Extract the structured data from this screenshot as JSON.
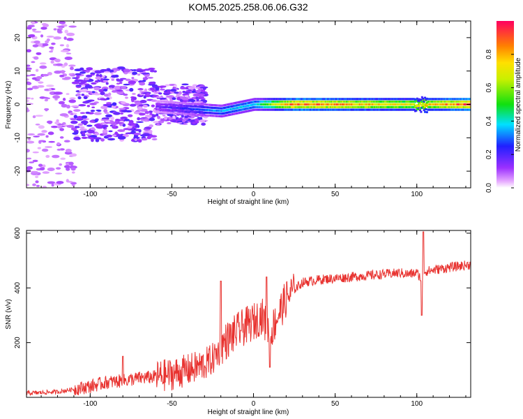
{
  "title": "KOM5.2025.258.06.06.G32",
  "chart_data": [
    {
      "type": "heatmap",
      "name": "spectrogram",
      "xlabel": "Height of straight line (km)",
      "ylabel": "Frequency (Hz)",
      "xlim": [
        -139,
        133
      ],
      "ylim": [
        -25,
        25
      ],
      "xticks": [
        -100,
        -50,
        0,
        50,
        100
      ],
      "yticks": [
        -20,
        -10,
        0,
        10,
        20
      ],
      "xtick_labels": [
        "-100",
        "-50",
        "0",
        "50",
        "100"
      ],
      "ytick_labels": [
        "-20",
        "-10",
        "0",
        "10",
        "20"
      ],
      "colorbar": {
        "label": "Normalized spectral amplitude",
        "range": [
          0,
          1
        ],
        "ticks": [
          0.0,
          0.2,
          0.4,
          0.6,
          0.8
        ],
        "tick_labels": [
          "0.0",
          "0.2",
          "0.4",
          "0.6",
          "0.8"
        ],
        "colormap": "rainbow (white-magenta-blue-cyan-green-yellow-orange-red)"
      },
      "description_points": {
        "ridge_frequency_hz": [
          {
            "height_km": -50,
            "freq_hz": -1,
            "amp": 0.2
          },
          {
            "height_km": -20,
            "freq_hz": -2,
            "amp": 0.35
          },
          {
            "height_km": 0,
            "freq_hz": 0,
            "amp": 0.4
          },
          {
            "height_km": 25,
            "freq_hz": 0,
            "amp": 0.9
          },
          {
            "height_km": 50,
            "freq_hz": 0,
            "amp": 0.85
          },
          {
            "height_km": 100,
            "freq_hz": 0,
            "amp": 0.7
          },
          {
            "height_km": 133,
            "freq_hz": 0,
            "amp": 0.95
          }
        ]
      }
    },
    {
      "type": "line",
      "name": "snr",
      "xlabel": "Height of straight line (km)",
      "ylabel": "SNR (v/v)",
      "xlim": [
        -139,
        133
      ],
      "ylim": [
        0,
        610
      ],
      "xticks": [
        -100,
        -50,
        0,
        50,
        100
      ],
      "yticks": [
        200,
        400,
        600
      ],
      "xtick_labels": [
        "-100",
        "-50",
        "0",
        "50",
        "100"
      ],
      "ytick_labels": [
        "200",
        "400",
        "600"
      ],
      "color": "#e8322f",
      "series": [
        {
          "name": "SNR",
          "x": [
            -139,
            -120,
            -100,
            -90,
            -80,
            -70,
            -60,
            -50,
            -40,
            -30,
            -25,
            -20,
            -18,
            -15,
            -10,
            -5,
            0,
            3,
            5,
            8,
            10,
            15,
            20,
            25,
            30,
            40,
            50,
            60,
            70,
            80,
            90,
            95,
            100,
            102,
            103,
            104,
            105,
            110,
            120,
            133
          ],
          "y": [
            15,
            20,
            40,
            55,
            60,
            70,
            75,
            85,
            100,
            120,
            140,
            180,
            200,
            215,
            240,
            260,
            275,
            290,
            300,
            260,
            230,
            300,
            360,
            395,
            420,
            430,
            435,
            440,
            445,
            450,
            455,
            450,
            455,
            440,
            420,
            450,
            460,
            465,
            475,
            485
          ]
        }
      ],
      "spikes": [
        {
          "x": -80,
          "y": 150
        },
        {
          "x": -20,
          "y": 425
        },
        {
          "x": 8,
          "y": 440
        },
        {
          "x": 10,
          "y": 110
        },
        {
          "x": 103,
          "y": 300
        },
        {
          "x": 104,
          "y": 605
        }
      ]
    }
  ]
}
